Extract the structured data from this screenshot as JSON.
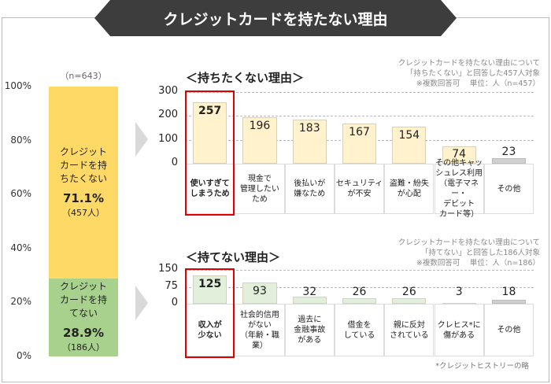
{
  "title": "クレジットカードを持たない理由",
  "chart_data": [
    {
      "type": "bar",
      "stacked": true,
      "sample": "（n=643）",
      "ylim": [
        0,
        100
      ],
      "yticks": [
        "0%",
        "20%",
        "40%",
        "60%",
        "80%",
        "100%"
      ],
      "segments": [
        {
          "label": "クレジットカードを持ちたくない",
          "percent": 71.1,
          "percent_label": "71.1%",
          "count_label": "（457人）",
          "color": "#ffd966"
        },
        {
          "label": "クレジットカードを持てない",
          "percent": 28.9,
          "percent_label": "28.9%",
          "count_label": "（186人）",
          "color": "#a9d18e"
        }
      ]
    },
    {
      "type": "bar",
      "title": "＜持ちたくない理由＞",
      "note": [
        "クレジットカードを持たない理由について",
        "「持ちたくない」と回答した457人対象",
        "※複数回答可　 単位：人（n=457）"
      ],
      "ylim": [
        0,
        300
      ],
      "yticks": [
        "0",
        "100",
        "200",
        "300"
      ],
      "categories": [
        "使いすぎて\nしまうため",
        "現金で\n管理したい\nため",
        "後払いが\n嫌なため",
        "セキュリティ\nが不安",
        "盗難・紛失\nが心配",
        "その他キャッ\nシュレス利用\n（電子マネー・\nデビット\nカード等）",
        "その他"
      ],
      "values": [
        257,
        196,
        183,
        167,
        154,
        74,
        23
      ],
      "highlight": 0,
      "bar_color": "#fff2cc",
      "other_color": "#d0d0d0"
    },
    {
      "type": "bar",
      "title": "＜持てない理由＞",
      "note": [
        "クレジットカードを持たない理由について",
        "「持てない」と回答した186人対象",
        "※複数回答可　 単位：人（n=186）"
      ],
      "ylim": [
        0,
        150
      ],
      "yticks": [
        "0",
        "75",
        "150"
      ],
      "categories": [
        "収入が\n少ない",
        "社会的信用\nがない\n（年齢・職業）",
        "過去に\n金融事故\nがある",
        "借金を\nしている",
        "親に反対\nされている",
        "クレヒス*に\n傷がある",
        "その他"
      ],
      "values": [
        125,
        93,
        32,
        26,
        26,
        3,
        18
      ],
      "highlight": 0,
      "bar_color": "#e2efda",
      "other_color": "#d0d0d0",
      "footnote": "*クレジットヒストリーの略"
    }
  ],
  "highlight_color": "#e00000"
}
